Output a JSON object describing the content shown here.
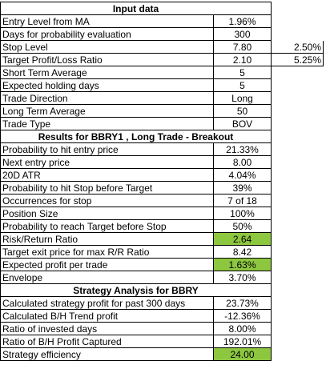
{
  "input_header": "Input data",
  "input_rows": [
    {
      "label": "Entry Level from MA",
      "value": "1.96%",
      "extra": ""
    },
    {
      "label": "Days for probability evaluation",
      "value": "300",
      "extra": ""
    },
    {
      "label": "Stop Level",
      "value": "7.80",
      "extra": "2.50%"
    },
    {
      "label": "Target Profit/Loss Ratio",
      "value": "2.10",
      "extra": "5.25%"
    },
    {
      "label": "Short Term Average",
      "value": "5",
      "extra": ""
    },
    {
      "label": "Expected holding days",
      "value": "5",
      "extra": ""
    },
    {
      "label": "Trade Direction",
      "value": "Long",
      "extra": ""
    },
    {
      "label": "Long Term Average",
      "value": "50",
      "extra": ""
    },
    {
      "label": "Trade Type",
      "value": "BOV",
      "extra": ""
    }
  ],
  "results_header": "Results for BBRY1 , Long Trade - Breakout",
  "results_rows": [
    {
      "label": "Probability to hit entry price",
      "value": "21.33%",
      "highlight": false
    },
    {
      "label": "Next entry price",
      "value": "8.00",
      "highlight": false
    },
    {
      "label": "20D ATR",
      "value": "4.04%",
      "highlight": false
    },
    {
      "label": "Probability to hit Stop before Target",
      "value": "39%",
      "highlight": false
    },
    {
      "label": "Occurrences for stop",
      "value": "7 of 18",
      "highlight": false
    },
    {
      "label": "Position Size",
      "value": "100%",
      "highlight": false
    },
    {
      "label": "Probability to reach Target before Stop",
      "value": "50%",
      "highlight": false
    },
    {
      "label": "Risk/Return Ratio",
      "value": "2.64",
      "highlight": true
    },
    {
      "label": "Target exit price for max R/R Ratio",
      "value": "8.42",
      "highlight": false
    },
    {
      "label": "Expected profit per trade",
      "value": "1.63%",
      "highlight": true
    },
    {
      "label": "Envelope",
      "value": "3.70%",
      "highlight": false
    }
  ],
  "strategy_header": "Strategy Analysis for BBRY",
  "strategy_rows": [
    {
      "label": "Calculated strategy profit for past 300 days",
      "value": "23.73%",
      "highlight": false
    },
    {
      "label": "Calculated B/H Trend profit",
      "value": "-12.36%",
      "highlight": false
    },
    {
      "label": "Ratio of invested days",
      "value": "8.00%",
      "highlight": false
    },
    {
      "label": "Ratio of B/H Profit Captured",
      "value": "192.01%",
      "highlight": false
    },
    {
      "label": "Strategy efficiency",
      "value": "24.00",
      "highlight": true
    }
  ],
  "colors": {
    "highlight": "#8dc63f",
    "gridline": "#d0d0d0"
  }
}
